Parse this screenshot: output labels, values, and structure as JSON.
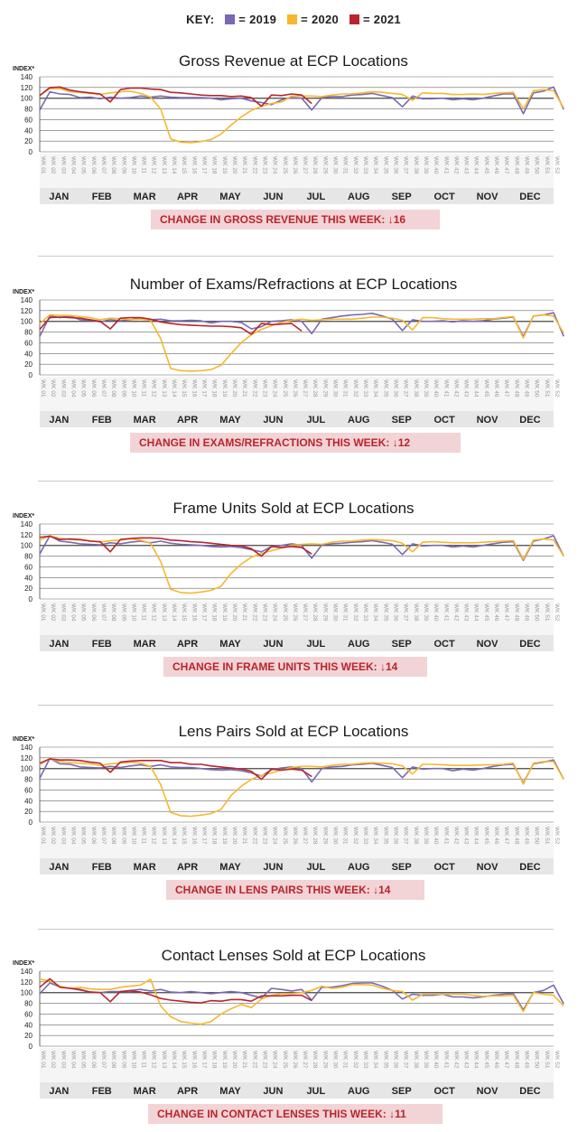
{
  "legend": {
    "label": "KEY:",
    "items": [
      {
        "name": "2019",
        "text": "= 2019",
        "color": "#7a68b3"
      },
      {
        "name": "2020",
        "text": "= 2020",
        "color": "#f5b82e"
      },
      {
        "name": "2021",
        "text": "= 2021",
        "color": "#b8252c"
      }
    ]
  },
  "chart_data": [
    {
      "type": "line",
      "title": "Gross Revenue at ECP Locations",
      "ylabel": "INDEX*",
      "ylim": [
        0,
        140
      ],
      "yticks": [
        0,
        20,
        40,
        60,
        80,
        100,
        120,
        140
      ],
      "change_label": "CHANGE IN GROSS REVENUE THIS WEEK:",
      "change_value": "16",
      "series": [
        {
          "name": "2019",
          "color": "#7a68b3",
          "values": [
            78,
            112,
            108,
            107,
            101,
            102,
            99,
            102,
            100,
            101,
            104,
            102,
            104,
            102,
            101,
            101,
            101,
            100,
            97,
            99,
            100,
            95,
            92,
            88,
            97,
            101,
            100,
            78,
            101,
            103,
            103,
            106,
            107,
            109,
            105,
            101,
            84,
            104,
            99,
            99,
            100,
            97,
            99,
            97,
            100,
            104,
            108,
            108,
            71,
            110,
            113,
            121,
            79
          ]
        },
        {
          "name": "2020",
          "color": "#f5b82e",
          "values": [
            105,
            118,
            118,
            112,
            111,
            109,
            107,
            110,
            112,
            113,
            109,
            102,
            80,
            24,
            18,
            17,
            19,
            23,
            33,
            50,
            65,
            77,
            85,
            90,
            93,
            104,
            104,
            104,
            103,
            106,
            108,
            108,
            110,
            112,
            111,
            109,
            107,
            96,
            110,
            109,
            109,
            107,
            107,
            108,
            107,
            109,
            110,
            111,
            80,
            114,
            116,
            114,
            82
          ]
        },
        {
          "name": "2021",
          "color": "#b8252c",
          "values": [
            105,
            120,
            121,
            115,
            112,
            110,
            108,
            93,
            116,
            119,
            119,
            117,
            116,
            111,
            110,
            108,
            106,
            105,
            105,
            103,
            104,
            101,
            85,
            106,
            105,
            108,
            106,
            90
          ]
        }
      ]
    },
    {
      "type": "line",
      "title": "Number of Exams/Refractions at ECP Locations",
      "ylabel": "INDEX*",
      "ylim": [
        0,
        140
      ],
      "yticks": [
        0,
        20,
        40,
        60,
        80,
        100,
        120,
        140
      ],
      "change_label": "CHANGE IN EXAMS/REFRACTIONS THIS WEEK:",
      "change_value": "12",
      "series": [
        {
          "name": "2019",
          "color": "#7a68b3",
          "values": [
            72,
            110,
            107,
            110,
            103,
            102,
            99,
            103,
            101,
            103,
            106,
            103,
            104,
            101,
            101,
            102,
            101,
            97,
            100,
            100,
            98,
            86,
            90,
            100,
            101,
            103,
            100,
            77,
            104,
            107,
            110,
            112,
            113,
            115,
            110,
            104,
            83,
            103,
            100,
            100,
            101,
            99,
            101,
            100,
            101,
            104,
            106,
            108,
            72,
            110,
            112,
            116,
            72
          ]
        },
        {
          "name": "2020",
          "color": "#f5b82e",
          "values": [
            96,
            112,
            111,
            111,
            109,
            107,
            103,
            106,
            105,
            103,
            104,
            102,
            68,
            12,
            8,
            7,
            8,
            10,
            18,
            40,
            60,
            75,
            85,
            92,
            98,
            102,
            104,
            102,
            103,
            104,
            104,
            104,
            106,
            108,
            108,
            106,
            102,
            84,
            107,
            107,
            105,
            104,
            104,
            104,
            105,
            105,
            107,
            109,
            69,
            110,
            112,
            110,
            78
          ]
        },
        {
          "name": "2021",
          "color": "#b8252c",
          "values": [
            85,
            107,
            108,
            107,
            106,
            103,
            100,
            86,
            106,
            107,
            107,
            104,
            99,
            96,
            94,
            93,
            92,
            91,
            91,
            90,
            88,
            76,
            96,
            94,
            95,
            96,
            82
          ]
        }
      ]
    },
    {
      "type": "line",
      "title": "Frame Units Sold at ECP Locations",
      "ylabel": "INDEX*",
      "ylim": [
        0,
        140
      ],
      "yticks": [
        0,
        20,
        40,
        60,
        80,
        100,
        120,
        140
      ],
      "change_label": "CHANGE IN FRAME UNITS THIS WEEK:",
      "change_value": "14",
      "series": [
        {
          "name": "2019",
          "color": "#7a68b3",
          "values": [
            84,
            118,
            108,
            106,
            103,
            102,
            101,
            105,
            103,
            106,
            108,
            105,
            108,
            104,
            102,
            101,
            100,
            98,
            97,
            98,
            96,
            92,
            88,
            98,
            100,
            103,
            100,
            76,
            101,
            103,
            104,
            106,
            107,
            109,
            106,
            102,
            83,
            103,
            99,
            100,
            100,
            97,
            99,
            97,
            100,
            103,
            106,
            107,
            72,
            108,
            112,
            118,
            80
          ]
        },
        {
          "name": "2020",
          "color": "#f5b82e",
          "values": [
            110,
            118,
            113,
            111,
            110,
            109,
            106,
            109,
            110,
            112,
            110,
            104,
            70,
            18,
            12,
            11,
            13,
            16,
            24,
            48,
            65,
            78,
            85,
            90,
            95,
            100,
            102,
            103,
            102,
            106,
            108,
            108,
            110,
            111,
            110,
            109,
            104,
            88,
            106,
            107,
            106,
            105,
            105,
            105,
            106,
            107,
            108,
            109,
            74,
            110,
            112,
            110,
            80
          ]
        },
        {
          "name": "2021",
          "color": "#b8252c",
          "values": [
            115,
            117,
            111,
            112,
            111,
            108,
            107,
            88,
            111,
            113,
            114,
            114,
            113,
            110,
            109,
            107,
            106,
            104,
            102,
            100,
            99,
            94,
            80,
            98,
            96,
            98,
            96,
            84
          ]
        }
      ]
    },
    {
      "type": "line",
      "title": "Lens Pairs Sold at ECP Locations",
      "ylabel": "INDEX*",
      "ylim": [
        0,
        140
      ],
      "yticks": [
        0,
        20,
        40,
        60,
        80,
        100,
        120,
        140
      ],
      "change_label": "CHANGE IN LENS PAIRS THIS WEEK:",
      "change_value": "14",
      "series": [
        {
          "name": "2019",
          "color": "#7a68b3",
          "values": [
            82,
            119,
            109,
            108,
            103,
            102,
            101,
            104,
            102,
            105,
            107,
            104,
            107,
            103,
            102,
            102,
            100,
            98,
            97,
            98,
            96,
            92,
            86,
            98,
            101,
            103,
            100,
            75,
            100,
            103,
            104,
            107,
            108,
            110,
            106,
            102,
            83,
            103,
            99,
            100,
            100,
            96,
            99,
            97,
            100,
            104,
            107,
            108,
            73,
            109,
            112,
            116,
            80
          ]
        },
        {
          "name": "2020",
          "color": "#f5b82e",
          "values": [
            108,
            118,
            113,
            111,
            110,
            109,
            106,
            109,
            110,
            112,
            110,
            104,
            70,
            18,
            12,
            11,
            13,
            16,
            24,
            50,
            67,
            80,
            87,
            92,
            97,
            102,
            104,
            104,
            103,
            106,
            108,
            108,
            110,
            111,
            110,
            109,
            105,
            90,
            108,
            108,
            107,
            106,
            106,
            106,
            107,
            107,
            108,
            110,
            71,
            110,
            113,
            113,
            80
          ]
        },
        {
          "name": "2021",
          "color": "#b8252c",
          "values": [
            110,
            118,
            116,
            116,
            115,
            112,
            110,
            93,
            112,
            114,
            115,
            115,
            115,
            111,
            111,
            108,
            108,
            105,
            103,
            101,
            99,
            95,
            80,
            99,
            97,
            99,
            97,
            85
          ]
        }
      ]
    },
    {
      "type": "line",
      "title": "Contact Lenses Sold at ECP Locations",
      "ylabel": "INDEX*",
      "ylim": [
        0,
        140
      ],
      "yticks": [
        0,
        20,
        40,
        60,
        80,
        100,
        120,
        140
      ],
      "change_label": "CHANGE IN CONTACT LENSES THIS WEEK:",
      "change_value": "11",
      "series": [
        {
          "name": "2019",
          "color": "#7a68b3",
          "values": [
            98,
            118,
            111,
            108,
            105,
            101,
            100,
            102,
            102,
            104,
            106,
            103,
            106,
            101,
            100,
            102,
            100,
            98,
            100,
            102,
            100,
            95,
            90,
            108,
            106,
            103,
            106,
            86,
            110,
            110,
            113,
            117,
            118,
            118,
            112,
            104,
            88,
            97,
            95,
            95,
            97,
            92,
            92,
            90,
            92,
            95,
            97,
            98,
            68,
            100,
            104,
            114,
            79
          ]
        },
        {
          "name": "2020",
          "color": "#f5b82e",
          "values": [
            125,
            122,
            112,
            108,
            110,
            107,
            106,
            106,
            110,
            112,
            114,
            125,
            75,
            55,
            46,
            43,
            41,
            46,
            60,
            70,
            78,
            72,
            88,
            95,
            98,
            98,
            100,
            104,
            112,
            108,
            110,
            115,
            115,
            114,
            108,
            104,
            102,
            86,
            97,
            97,
            97,
            97,
            97,
            95,
            93,
            94,
            94,
            95,
            65,
            100,
            97,
            95,
            75
          ]
        },
        {
          "name": "2021",
          "color": "#b8252c",
          "values": [
            110,
            126,
            110,
            108,
            106,
            101,
            100,
            83,
            102,
            103,
            101,
            96,
            89,
            86,
            84,
            82,
            81,
            85,
            84,
            87,
            87,
            84,
            94,
            94,
            94,
            95,
            95,
            85
          ]
        }
      ]
    }
  ],
  "axis": {
    "week_labels": [
      "WK 01",
      "WK 02",
      "WK 03",
      "WK 04",
      "WK 05",
      "WK 06",
      "WK 07",
      "WK 08",
      "WK 09",
      "WK 10",
      "WK 11",
      "WK 12",
      "WK 13",
      "WK 14",
      "WK 15",
      "WK 16",
      "WK 17",
      "WK 18",
      "WK 19",
      "WK 20",
      "WK 21",
      "WK 22",
      "WK 23",
      "WK 24",
      "WK 25",
      "WK 26",
      "WK 27",
      "WK 28",
      "WK 29",
      "WK 30",
      "WK 31",
      "WK 32",
      "WK 33",
      "WK 34",
      "WK 35",
      "WK 36",
      "WK 37",
      "WK 38",
      "WK 39",
      "WK 40",
      "WK 41",
      "WK 42",
      "WK 43",
      "WK 44",
      "WK 45",
      "WK 46",
      "WK 47",
      "WK 48",
      "WK 49",
      "WK 50",
      "WK 51",
      "WK 52"
    ],
    "months": [
      "JAN",
      "FEB",
      "MAR",
      "APR",
      "MAY",
      "JUN",
      "JUL",
      "AUG",
      "SEP",
      "OCT",
      "NOV",
      "DEC"
    ]
  },
  "colors": {
    "axis": "#222222",
    "grid": "#555555",
    "month_bar": "#e6e6e6",
    "change_bg": "#f2d4d6",
    "change_text": "#b8252c",
    "arrow": "↓"
  }
}
